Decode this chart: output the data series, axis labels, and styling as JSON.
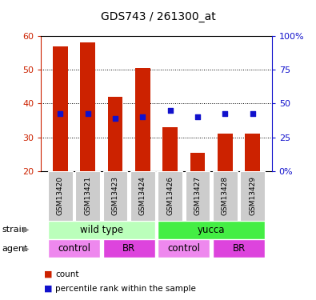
{
  "title": "GDS743 / 261300_at",
  "samples": [
    "GSM13420",
    "GSM13421",
    "GSM13423",
    "GSM13424",
    "GSM13426",
    "GSM13427",
    "GSM13428",
    "GSM13429"
  ],
  "bar_tops": [
    57,
    58,
    42,
    50.5,
    33,
    25.5,
    31,
    31
  ],
  "bar_bottom": 20,
  "percentile_left_axis": [
    37,
    37,
    35.5,
    36,
    38,
    36,
    37,
    37
  ],
  "ylim": [
    20,
    60
  ],
  "yticks_left": [
    20,
    30,
    40,
    50,
    60
  ],
  "right_yticks": [
    0,
    25,
    50,
    75,
    100
  ],
  "right_ylabels": [
    "0%",
    "25",
    "50",
    "75",
    "100%"
  ],
  "bar_color": "#cc2200",
  "percentile_color": "#1111cc",
  "bar_width": 0.55,
  "strain_groups": [
    {
      "label": "wild type",
      "cols": [
        0,
        1,
        2,
        3
      ],
      "color": "#bbffbb"
    },
    {
      "label": "yucca",
      "cols": [
        4,
        5,
        6,
        7
      ],
      "color": "#44ee44"
    }
  ],
  "agent_groups": [
    {
      "label": "control",
      "cols": [
        0,
        1
      ],
      "color": "#ee88ee"
    },
    {
      "label": "BR",
      "cols": [
        2,
        3
      ],
      "color": "#dd44dd"
    },
    {
      "label": "control",
      "cols": [
        4,
        5
      ],
      "color": "#ee88ee"
    },
    {
      "label": "BR",
      "cols": [
        6,
        7
      ],
      "color": "#dd44dd"
    }
  ],
  "tick_label_bg": "#cccccc",
  "left_axis_color": "#cc2200",
  "right_axis_color": "#1111cc",
  "legend_count_color": "#cc2200",
  "legend_percentile_color": "#1111cc",
  "grid_lines": [
    30,
    40,
    50
  ]
}
